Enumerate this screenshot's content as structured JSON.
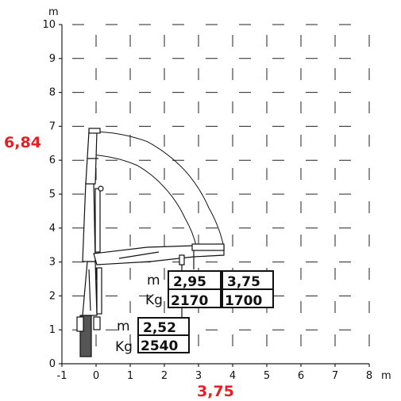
{
  "chart_data": {
    "type": "diagram",
    "x_unit": "m",
    "y_unit": "m",
    "x_ticks": [
      "-1",
      "0",
      "1",
      "2",
      "3",
      "4",
      "5",
      "6",
      "7",
      "8"
    ],
    "y_ticks": [
      "0",
      "1",
      "2",
      "3",
      "4",
      "5",
      "6",
      "7",
      "8",
      "9",
      "10"
    ],
    "xlim": [
      -1,
      8
    ],
    "ylim": [
      0,
      10
    ],
    "grid": true,
    "max_height": {
      "label": "6,84",
      "value": 6.84
    },
    "max_reach": {
      "label": "3,75",
      "value": 3.75
    },
    "load_points": [
      {
        "x": 2.52,
        "reach_label": "2,52",
        "load_label": "2540",
        "load": 2540
      },
      {
        "x": 2.95,
        "reach_label": "2,95",
        "load_label": "2170",
        "load": 2170
      },
      {
        "x": 3.75,
        "reach_label": "3,75",
        "load_label": "1700",
        "load": 1700
      }
    ],
    "box_units": {
      "reach": "m",
      "load": "Kg"
    },
    "arcs": [
      {
        "x": [
          0.0,
          1.5,
          2.6,
          3.3,
          3.75
        ],
        "y": [
          6.84,
          6.55,
          5.7,
          4.6,
          3.4
        ]
      },
      {
        "x": [
          0.0,
          1.2,
          2.0,
          2.6,
          2.95
        ],
        "y": [
          6.15,
          5.85,
          5.2,
          4.3,
          3.4
        ]
      }
    ]
  }
}
